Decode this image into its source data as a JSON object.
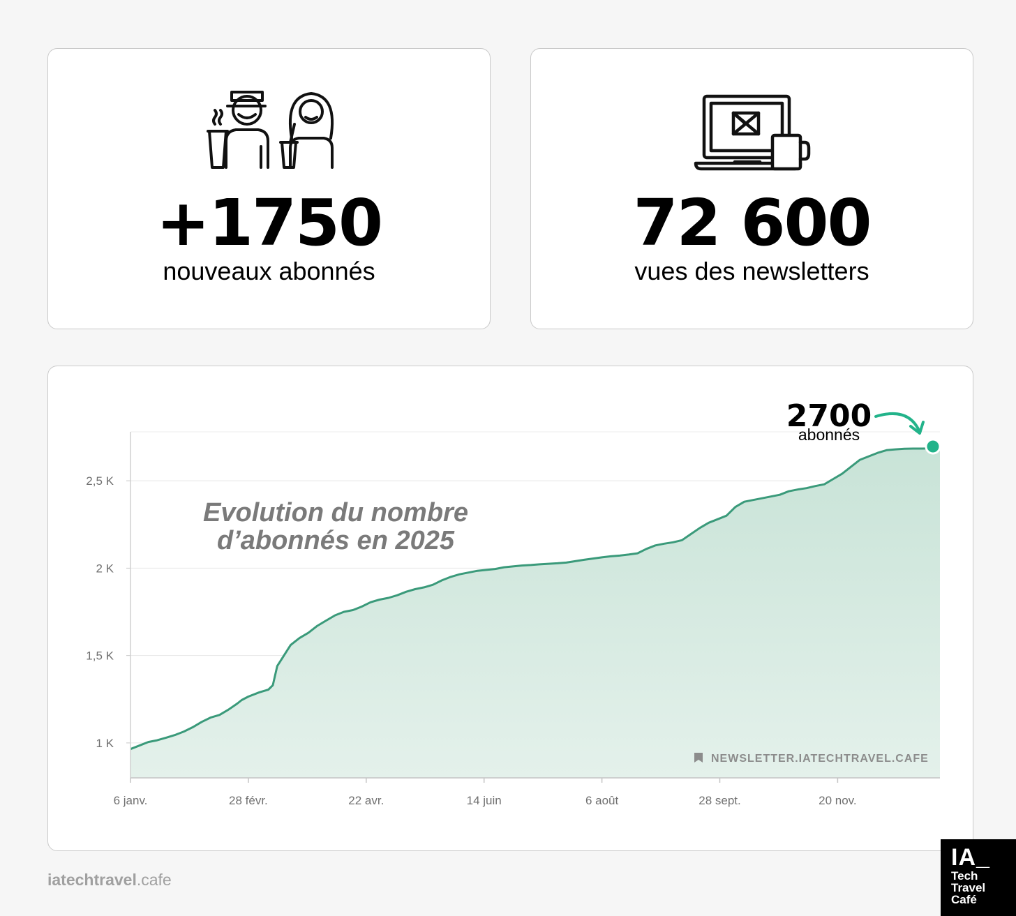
{
  "stats": [
    {
      "value": "+1750",
      "label": "nouveaux abonnés",
      "icon": "people-with-coffee-icon"
    },
    {
      "value": "72 600",
      "label": "vues des newsletters",
      "icon": "laptop-mail-mug-icon"
    }
  ],
  "chart_data": {
    "type": "area",
    "title_lines": [
      "Evolution du nombre",
      "d’abonnés en 2025"
    ],
    "xlabel": "",
    "ylabel": "",
    "x_ticks": [
      "6 janv.",
      "28 févr.",
      "22 avr.",
      "14 juin",
      "6 août",
      "28 sept.",
      "20 nov."
    ],
    "x_tick_days": [
      0,
      53,
      106,
      159,
      212,
      265,
      318
    ],
    "y_ticks": [
      {
        "value": 1000,
        "label": "1 K"
      },
      {
        "value": 1500,
        "label": "1,5 K"
      },
      {
        "value": 2000,
        "label": "2 K"
      },
      {
        "value": 2500,
        "label": "2,5 K"
      }
    ],
    "ylim": [
      800,
      2780
    ],
    "xlim": [
      0,
      364
    ],
    "grid": true,
    "series": [
      {
        "x": [
          0,
          4,
          8,
          12,
          16,
          20,
          24,
          28,
          32,
          36,
          40,
          44,
          48,
          50,
          53,
          58,
          62,
          64,
          66,
          68,
          70,
          72,
          74,
          76,
          80,
          84,
          88,
          92,
          96,
          100,
          104,
          108,
          112,
          116,
          120,
          124,
          128,
          132,
          136,
          140,
          144,
          148,
          152,
          156,
          160,
          164,
          168,
          172,
          176,
          180,
          184,
          188,
          192,
          196,
          200,
          204,
          208,
          212,
          216,
          220,
          224,
          228,
          232,
          236,
          240,
          244,
          248,
          252,
          256,
          260,
          264,
          268,
          272,
          276,
          280,
          284,
          288,
          292,
          296,
          300,
          304,
          308,
          312,
          316,
          320,
          324,
          328,
          332,
          336,
          340,
          344,
          348,
          352,
          356,
          360,
          364
        ],
        "values": [
          965,
          985,
          1005,
          1015,
          1030,
          1045,
          1065,
          1090,
          1120,
          1145,
          1160,
          1190,
          1225,
          1245,
          1265,
          1290,
          1305,
          1330,
          1440,
          1480,
          1520,
          1560,
          1580,
          1600,
          1630,
          1670,
          1700,
          1730,
          1750,
          1760,
          1780,
          1805,
          1820,
          1830,
          1845,
          1865,
          1880,
          1890,
          1905,
          1930,
          1950,
          1965,
          1975,
          1985,
          1990,
          1995,
          2005,
          2010,
          2015,
          2018,
          2022,
          2025,
          2028,
          2032,
          2040,
          2048,
          2055,
          2062,
          2068,
          2072,
          2078,
          2085,
          2110,
          2130,
          2140,
          2148,
          2160,
          2195,
          2230,
          2260,
          2280,
          2300,
          2350,
          2380,
          2390,
          2400,
          2410,
          2420,
          2440,
          2450,
          2458,
          2470,
          2480,
          2510,
          2540,
          2580,
          2620,
          2640,
          2660,
          2675,
          2680,
          2683,
          2684,
          2684,
          2685,
          2700
        ]
      }
    ],
    "annotation": {
      "value": "2700",
      "label": "abonnés"
    },
    "watermark": "NEWSLETTER.IATECHTRAVEL.CAFE",
    "colors": {
      "line": "#3a9a7a",
      "fill": "#cfe6dc",
      "marker": "#22b38a",
      "arrow": "#22b38a"
    }
  },
  "footer": {
    "site_bold": "iatechtravel",
    "site_rest": ".cafe"
  },
  "logo": {
    "line1": "IA_",
    "line2": "Tech",
    "line3": "Travel",
    "line4": "Café"
  }
}
